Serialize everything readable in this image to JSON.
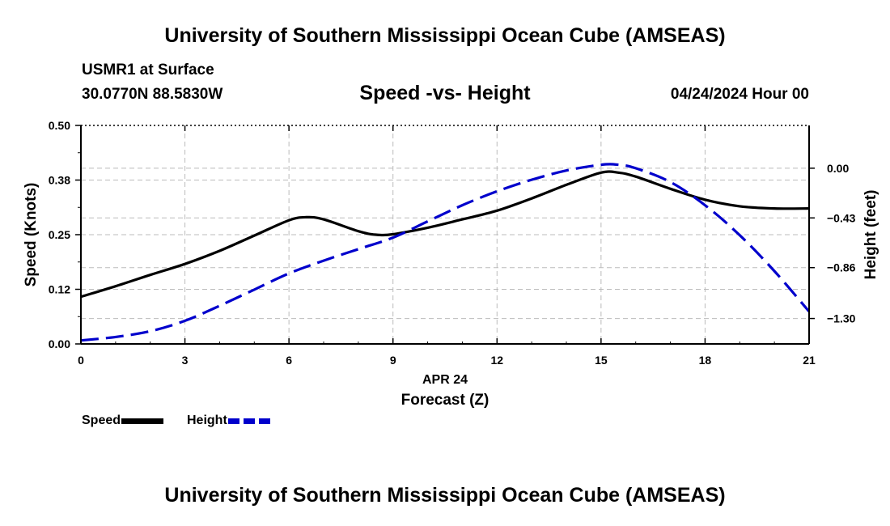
{
  "header": {
    "title": "University of Southern Mississippi Ocean Cube (AMSEAS)",
    "station": "USMR1 at Surface",
    "coords": "30.0770N  88.5830W",
    "subtitle": "Speed -vs- Height",
    "timestamp": "04/24/2024 Hour 00"
  },
  "footer": {
    "title": "University of Southern Mississippi Ocean Cube (AMSEAS)"
  },
  "chart_data": {
    "type": "line",
    "title": "Speed -vs- Height",
    "xlabel_date": "APR 24",
    "xlabel": "Forecast (Z)",
    "ylabel_left": "Speed (Knots)",
    "ylabel_right": "Height (feet)",
    "xlim": [
      0,
      21
    ],
    "ylim_left": [
      0,
      0.5
    ],
    "ylim_right": [
      -1.52,
      0.37
    ],
    "x_ticks": [
      0,
      3,
      6,
      9,
      12,
      15,
      18,
      21
    ],
    "x_tick_labels": [
      "0",
      "3",
      "6",
      "9",
      "12",
      "15",
      "18",
      "21"
    ],
    "y_left_ticks": [
      0,
      0.125,
      0.25,
      0.375,
      0.5
    ],
    "y_left_tick_labels": [
      "0.00",
      "0.12",
      "0.25",
      "0.38",
      "0.50"
    ],
    "y_right_ticks": [
      0,
      -0.43,
      -0.86,
      -1.3
    ],
    "y_right_tick_labels": [
      "0.00",
      "−0.43",
      "−0.86",
      "−1.30"
    ],
    "grid": true,
    "series": [
      {
        "name": "Speed",
        "axis": "left",
        "color": "#000000",
        "style": "solid",
        "x": [
          0,
          1,
          2,
          3,
          4,
          5,
          6,
          6.5,
          7,
          8,
          8.5,
          9,
          10,
          11,
          12,
          13,
          14,
          15,
          15.5,
          16,
          17,
          18,
          19,
          20,
          21
        ],
        "values": [
          0.108,
          0.132,
          0.158,
          0.183,
          0.213,
          0.248,
          0.283,
          0.29,
          0.285,
          0.258,
          0.25,
          0.251,
          0.266,
          0.285,
          0.305,
          0.333,
          0.364,
          0.392,
          0.392,
          0.383,
          0.355,
          0.33,
          0.315,
          0.31,
          0.31
        ]
      },
      {
        "name": "Height",
        "axis": "right",
        "color": "#0000cc",
        "style": "dashed",
        "x": [
          0,
          1,
          2,
          3,
          4,
          5,
          6,
          7,
          8,
          9,
          10,
          11,
          12,
          13,
          14,
          15,
          15.5,
          16,
          17,
          18,
          19,
          20,
          21
        ],
        "values": [
          -1.49,
          -1.46,
          -1.41,
          -1.32,
          -1.19,
          -1.05,
          -0.91,
          -0.8,
          -0.7,
          -0.6,
          -0.46,
          -0.32,
          -0.2,
          -0.1,
          -0.02,
          0.03,
          0.03,
          0.0,
          -0.12,
          -0.32,
          -0.58,
          -0.89,
          -1.24
        ]
      }
    ],
    "legend": {
      "position": "bottom-left",
      "items": [
        "Speed",
        "Height"
      ]
    }
  }
}
